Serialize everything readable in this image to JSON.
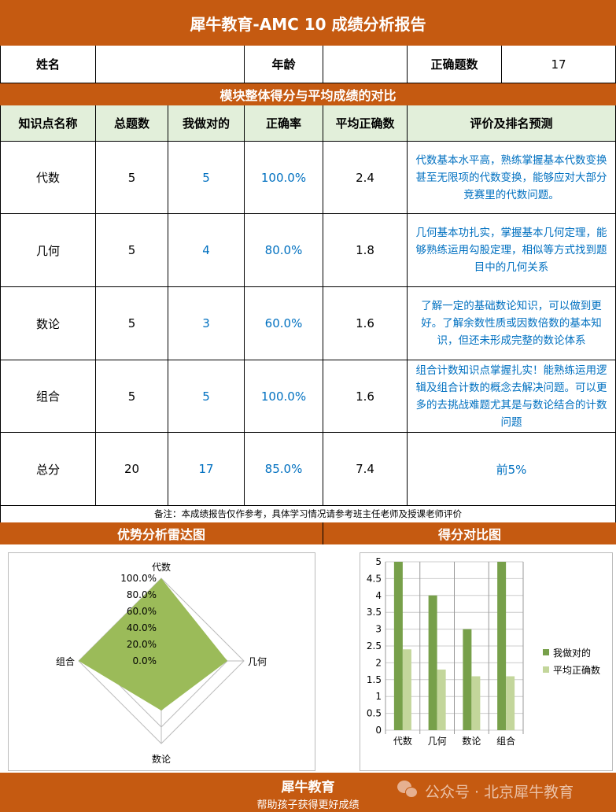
{
  "title": "犀牛教育-AMC 10 成绩分析报告",
  "info": {
    "name_label": "姓名",
    "name_value": "",
    "age_label": "年龄",
    "age_value": "",
    "correct_label": "正确题数",
    "correct_value": "17"
  },
  "section_title": "模块整体得分与平均成绩的对比",
  "columns": [
    "知识点名称",
    "总题数",
    "我做对的",
    "正确率",
    "平均正确数",
    "评价及排名预测"
  ],
  "rows": [
    {
      "name": "代数",
      "total": "5",
      "mine": "5",
      "rate": "100.0%",
      "avg": "2.4",
      "comment": "代数基本水平高，熟练掌握基本代数变换甚至无限项的代数变换，能够应对大部分竞赛里的代数问题。"
    },
    {
      "name": "几何",
      "total": "5",
      "mine": "4",
      "rate": "80.0%",
      "avg": "1.8",
      "comment": "几何基本功扎实，掌握基本几何定理，能够熟练运用勾股定理，相似等方式找到题目中的几何关系"
    },
    {
      "name": "数论",
      "total": "5",
      "mine": "3",
      "rate": "60.0%",
      "avg": "1.6",
      "comment": "了解一定的基础数论知识，可以做到更好。了解余数性质或因数倍数的基本知识，但还未形成完整的数论体系"
    },
    {
      "name": "组合",
      "total": "5",
      "mine": "5",
      "rate": "100.0%",
      "avg": "1.6",
      "comment": "组合计数知识点掌握扎实！能熟练运用逻辑及组合计数的概念去解决问题。可以更多的去挑战难题尤其是与数论结合的计数问题"
    },
    {
      "name": "总分",
      "total": "20",
      "mine": "17",
      "rate": "85.0%",
      "avg": "7.4",
      "comment": "前5%"
    }
  ],
  "note": "备注：本成绩报告仅作参考，具体学习情况请参考班主任老师及授课老师评价",
  "radar_title": "优势分析雷达图",
  "bar_title": "得分对比图",
  "chart_data": [
    {
      "type": "radar",
      "categories": [
        "代数",
        "几何",
        "数论",
        "组合"
      ],
      "values": [
        100,
        80,
        60,
        100
      ],
      "ticks": [
        "0.0%",
        "20.0%",
        "40.0%",
        "60.0%",
        "80.0%",
        "100.0%"
      ],
      "range": [
        0,
        100
      ],
      "color": "#9BBB59"
    },
    {
      "type": "bar",
      "categories": [
        "代数",
        "几何",
        "数论",
        "组合"
      ],
      "series": [
        {
          "name": "我做对的",
          "values": [
            5,
            4,
            3,
            5
          ],
          "color": "#77A04A"
        },
        {
          "name": "平均正确数",
          "values": [
            2.4,
            1.8,
            1.6,
            1.6
          ],
          "color": "#C3D69B"
        }
      ],
      "ylim": [
        0,
        5
      ],
      "yticks": [
        "0",
        "0.5",
        "1",
        "1.5",
        "2",
        "2.5",
        "3",
        "3.5",
        "4",
        "4.5",
        "5"
      ],
      "grid": true,
      "legend": "right"
    }
  ],
  "footer": {
    "brand": "犀牛教育",
    "slogan": "帮助孩子获得更好成绩",
    "watermark": "公众号 · 北京犀牛教育"
  },
  "colors": {
    "brand": "#C55A11",
    "header_bg": "#E2EFDA",
    "value_blue": "#0070C0"
  }
}
